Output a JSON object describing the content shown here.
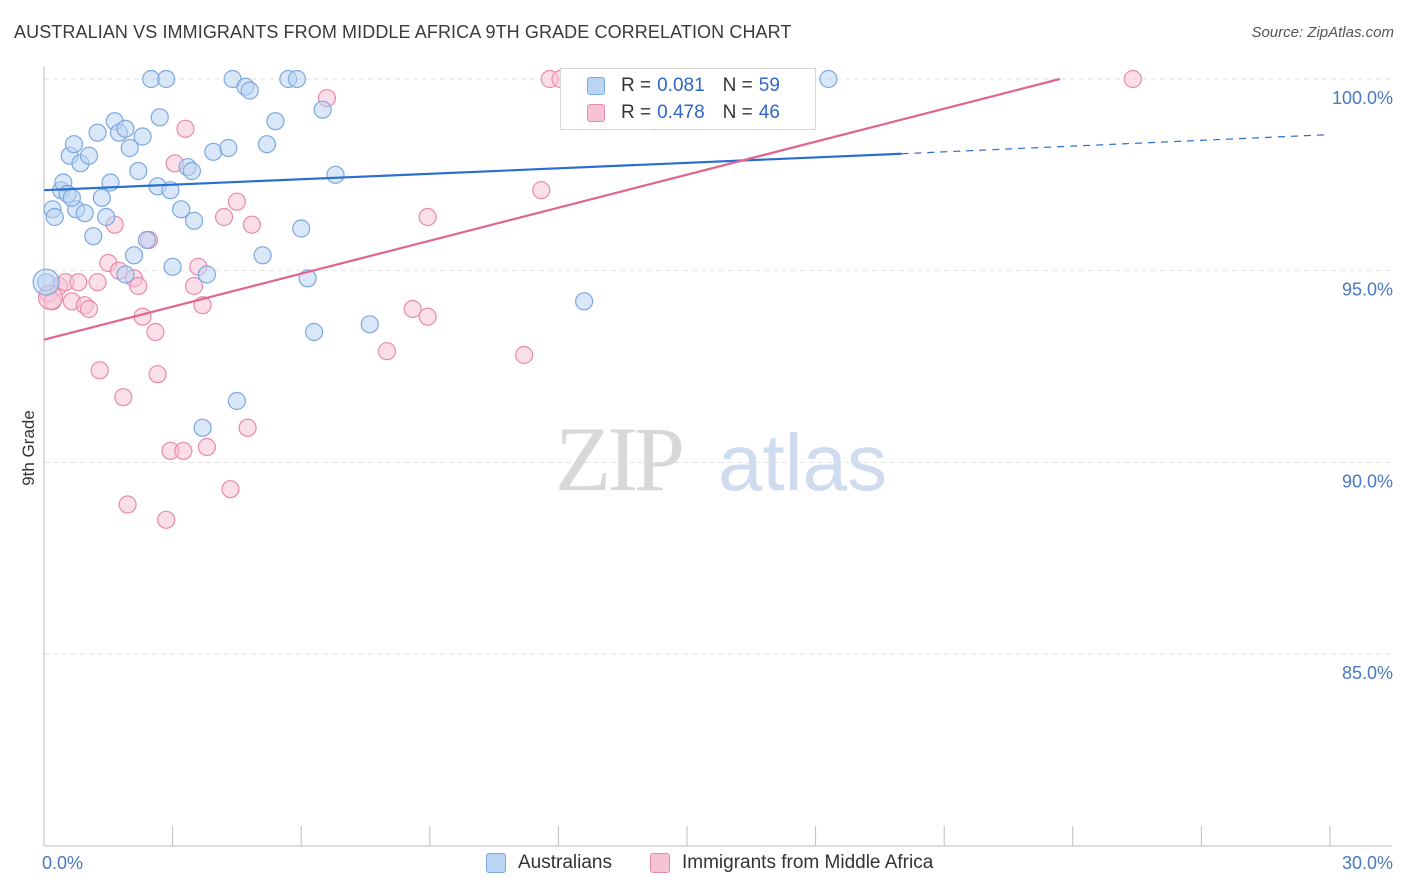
{
  "chart_data": {
    "type": "scatter",
    "title": "AUSTRALIAN VS IMMIGRANTS FROM MIDDLE AFRICA 9TH GRADE CORRELATION CHART",
    "source": "Source: ZipAtlas.com",
    "ylabel": "9th Grade",
    "xlabel": "",
    "xlim": [
      0,
      30
    ],
    "ylim": [
      80.5,
      100.5
    ],
    "x_tick_labels": [
      "0.0%",
      "30.0%"
    ],
    "y_ticks": [
      {
        "value": 100,
        "label": "100.0%"
      },
      {
        "value": 95,
        "label": "95.0%"
      },
      {
        "value": 90,
        "label": "90.0%"
      },
      {
        "value": 85,
        "label": "85.0%"
      }
    ],
    "watermark": {
      "zip": "ZIP",
      "atlas": "atlas"
    },
    "legend": {
      "r_label": "R =",
      "n_label": "N =",
      "entries": [
        {
          "r": "0.081",
          "n": "59"
        },
        {
          "r": "0.478",
          "n": "46"
        }
      ]
    },
    "series": [
      {
        "name": "Australians",
        "color": "#7aa8e0",
        "fill": "#bcd4f3",
        "line_color": "#2a6fcf",
        "trend": {
          "x0": 0,
          "y0": 97.1,
          "x1": 20.0,
          "y1": 98.05,
          "dash_to_x": 30,
          "dash_to_y": 98.55
        },
        "points": [
          [
            0.05,
            94.7
          ],
          [
            0.2,
            96.6
          ],
          [
            0.25,
            96.4
          ],
          [
            0.4,
            97.1
          ],
          [
            0.45,
            97.3
          ],
          [
            0.55,
            97.0
          ],
          [
            0.6,
            98.0
          ],
          [
            0.7,
            98.3
          ],
          [
            0.75,
            96.6
          ],
          [
            0.85,
            97.8
          ],
          [
            0.95,
            96.5
          ],
          [
            1.05,
            98.0
          ],
          [
            1.15,
            95.9
          ],
          [
            1.25,
            98.6
          ],
          [
            1.35,
            96.9
          ],
          [
            1.45,
            96.4
          ],
          [
            1.55,
            97.3
          ],
          [
            1.65,
            98.9
          ],
          [
            1.75,
            98.6
          ],
          [
            1.9,
            98.7
          ],
          [
            2.0,
            98.2
          ],
          [
            2.1,
            95.4
          ],
          [
            2.2,
            97.6
          ],
          [
            2.3,
            98.5
          ],
          [
            2.4,
            95.8
          ],
          [
            2.5,
            100.0
          ],
          [
            2.65,
            97.2
          ],
          [
            2.7,
            99.0
          ],
          [
            2.85,
            100.0
          ],
          [
            2.95,
            97.1
          ],
          [
            3.0,
            95.1
          ],
          [
            3.2,
            96.6
          ],
          [
            3.35,
            97.7
          ],
          [
            3.45,
            97.6
          ],
          [
            3.5,
            96.3
          ],
          [
            3.8,
            94.9
          ],
          [
            3.95,
            98.1
          ],
          [
            4.3,
            98.2
          ],
          [
            4.4,
            100.0
          ],
          [
            4.5,
            91.6
          ],
          [
            4.7,
            99.8
          ],
          [
            4.8,
            99.7
          ],
          [
            5.1,
            95.4
          ],
          [
            5.2,
            98.3
          ],
          [
            5.4,
            98.9
          ],
          [
            5.7,
            100.0
          ],
          [
            5.9,
            100.0
          ],
          [
            6.0,
            96.1
          ],
          [
            6.15,
            94.8
          ],
          [
            6.3,
            93.4
          ],
          [
            6.5,
            99.2
          ],
          [
            6.8,
            97.5
          ],
          [
            7.6,
            93.6
          ],
          [
            12.3,
            100.0
          ],
          [
            12.6,
            94.2
          ],
          [
            18.3,
            100.0
          ],
          [
            1.9,
            94.9
          ],
          [
            0.65,
            96.9
          ],
          [
            3.7,
            90.9
          ]
        ]
      },
      {
        "name": "Immigrants from Middle Africa",
        "color": "#e98aab",
        "fill": "#f6c3d5",
        "line_color": "#e0648e",
        "trend": {
          "x0": 0,
          "y0": 93.2,
          "x1": 23.7,
          "y1": 100.0
        },
        "points": [
          [
            0.1,
            94.4
          ],
          [
            0.2,
            94.2
          ],
          [
            0.35,
            94.6
          ],
          [
            0.5,
            94.7
          ],
          [
            0.65,
            94.2
          ],
          [
            0.8,
            94.7
          ],
          [
            0.95,
            94.1
          ],
          [
            1.05,
            94.0
          ],
          [
            1.25,
            94.7
          ],
          [
            1.3,
            92.4
          ],
          [
            1.5,
            95.2
          ],
          [
            1.65,
            96.2
          ],
          [
            1.75,
            95.0
          ],
          [
            1.85,
            91.7
          ],
          [
            1.95,
            88.9
          ],
          [
            2.1,
            94.8
          ],
          [
            2.2,
            94.6
          ],
          [
            2.3,
            93.8
          ],
          [
            2.45,
            95.8
          ],
          [
            2.6,
            93.4
          ],
          [
            2.65,
            92.3
          ],
          [
            2.85,
            88.5
          ],
          [
            2.95,
            90.3
          ],
          [
            3.05,
            97.8
          ],
          [
            3.25,
            90.3
          ],
          [
            3.3,
            98.7
          ],
          [
            3.5,
            94.6
          ],
          [
            3.6,
            95.1
          ],
          [
            3.7,
            94.1
          ],
          [
            3.8,
            90.4
          ],
          [
            4.2,
            96.4
          ],
          [
            4.35,
            89.3
          ],
          [
            4.5,
            96.8
          ],
          [
            4.75,
            90.9
          ],
          [
            4.85,
            96.2
          ],
          [
            6.6,
            99.5
          ],
          [
            8.0,
            92.9
          ],
          [
            8.6,
            94.0
          ],
          [
            8.95,
            93.8
          ],
          [
            8.95,
            96.4
          ],
          [
            11.2,
            92.8
          ],
          [
            11.6,
            97.1
          ],
          [
            11.8,
            100.0
          ],
          [
            12.05,
            100.0
          ],
          [
            14.25,
            98.9
          ],
          [
            25.4,
            100.0
          ]
        ]
      }
    ]
  }
}
